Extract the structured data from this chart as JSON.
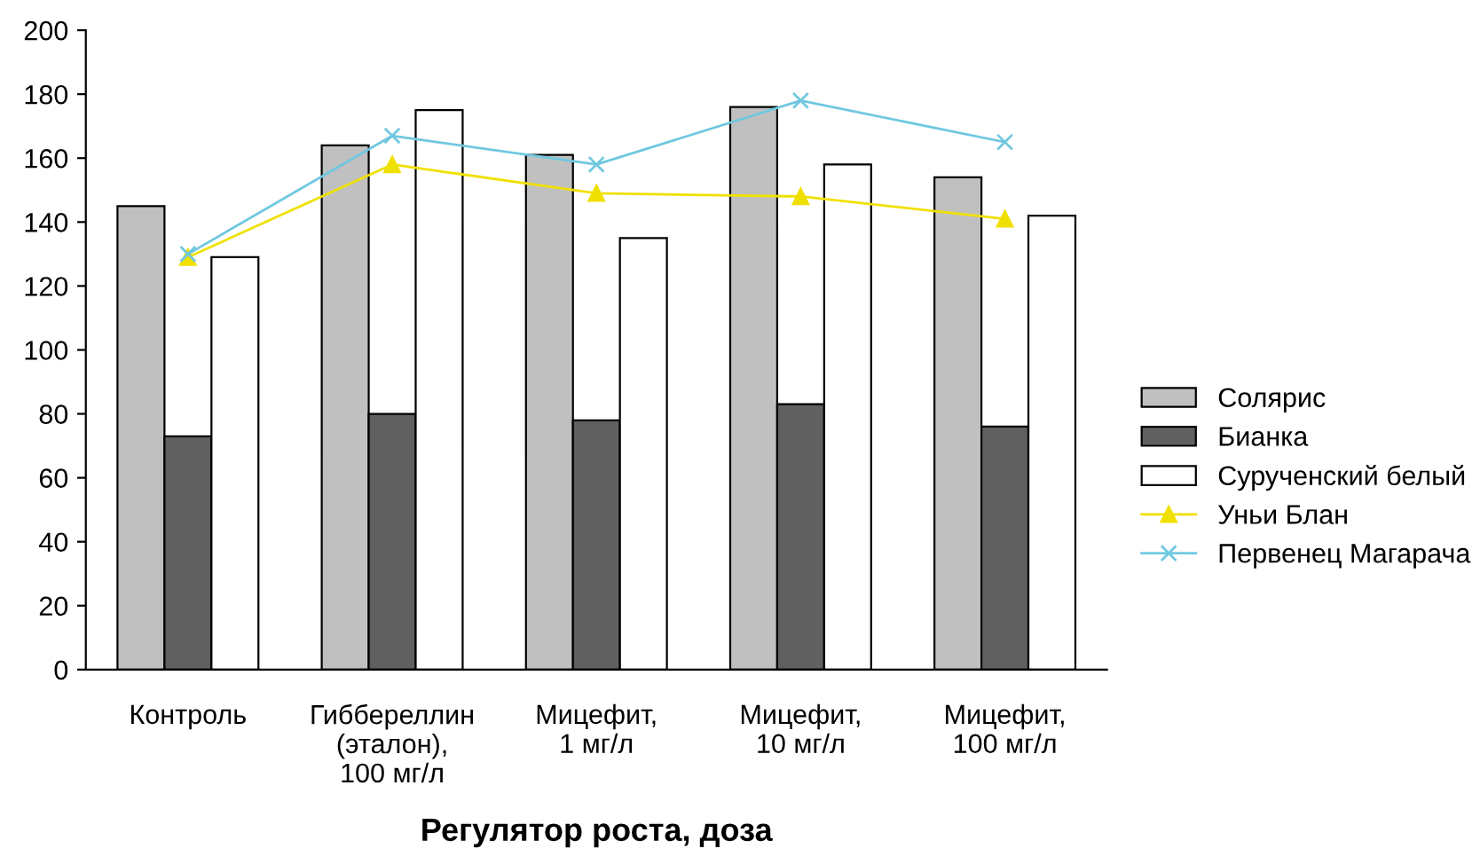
{
  "chart_data": {
    "type": "bar",
    "xlabel": "Регулятор роста, доза",
    "categories": [
      "Контроль",
      "Гиббереллин\n(эталон),\n100 мг/л",
      "Мицефит,\n1 мг/л",
      "Мицефит,\n10 мг/л",
      "Мицефит,\n100 мг/л"
    ],
    "series": [
      {
        "name": "Солярис",
        "color": "#c0c0c0",
        "values": [
          145,
          164,
          161,
          176,
          154
        ]
      },
      {
        "name": "Бианка",
        "color": "#606060",
        "values": [
          73,
          80,
          78,
          83,
          76
        ]
      },
      {
        "name": "Сурученский белый",
        "color": "#ffffff",
        "values": [
          129,
          175,
          135,
          158,
          142
        ]
      },
      {
        "name": "Уньи Блан",
        "type": "line",
        "marker": "triangle",
        "color": "#f0e000",
        "values": [
          129,
          158,
          149,
          148,
          141
        ]
      },
      {
        "name": "Первенец Магарача",
        "type": "line",
        "marker": "cross",
        "color": "#70c8e0",
        "values": [
          130,
          167,
          158,
          178,
          165
        ]
      }
    ],
    "ylim": [
      0,
      200
    ],
    "yticks": [
      0,
      20,
      40,
      60,
      80,
      100,
      120,
      140,
      160,
      180,
      200
    ],
    "grid": false,
    "legend": "right"
  }
}
